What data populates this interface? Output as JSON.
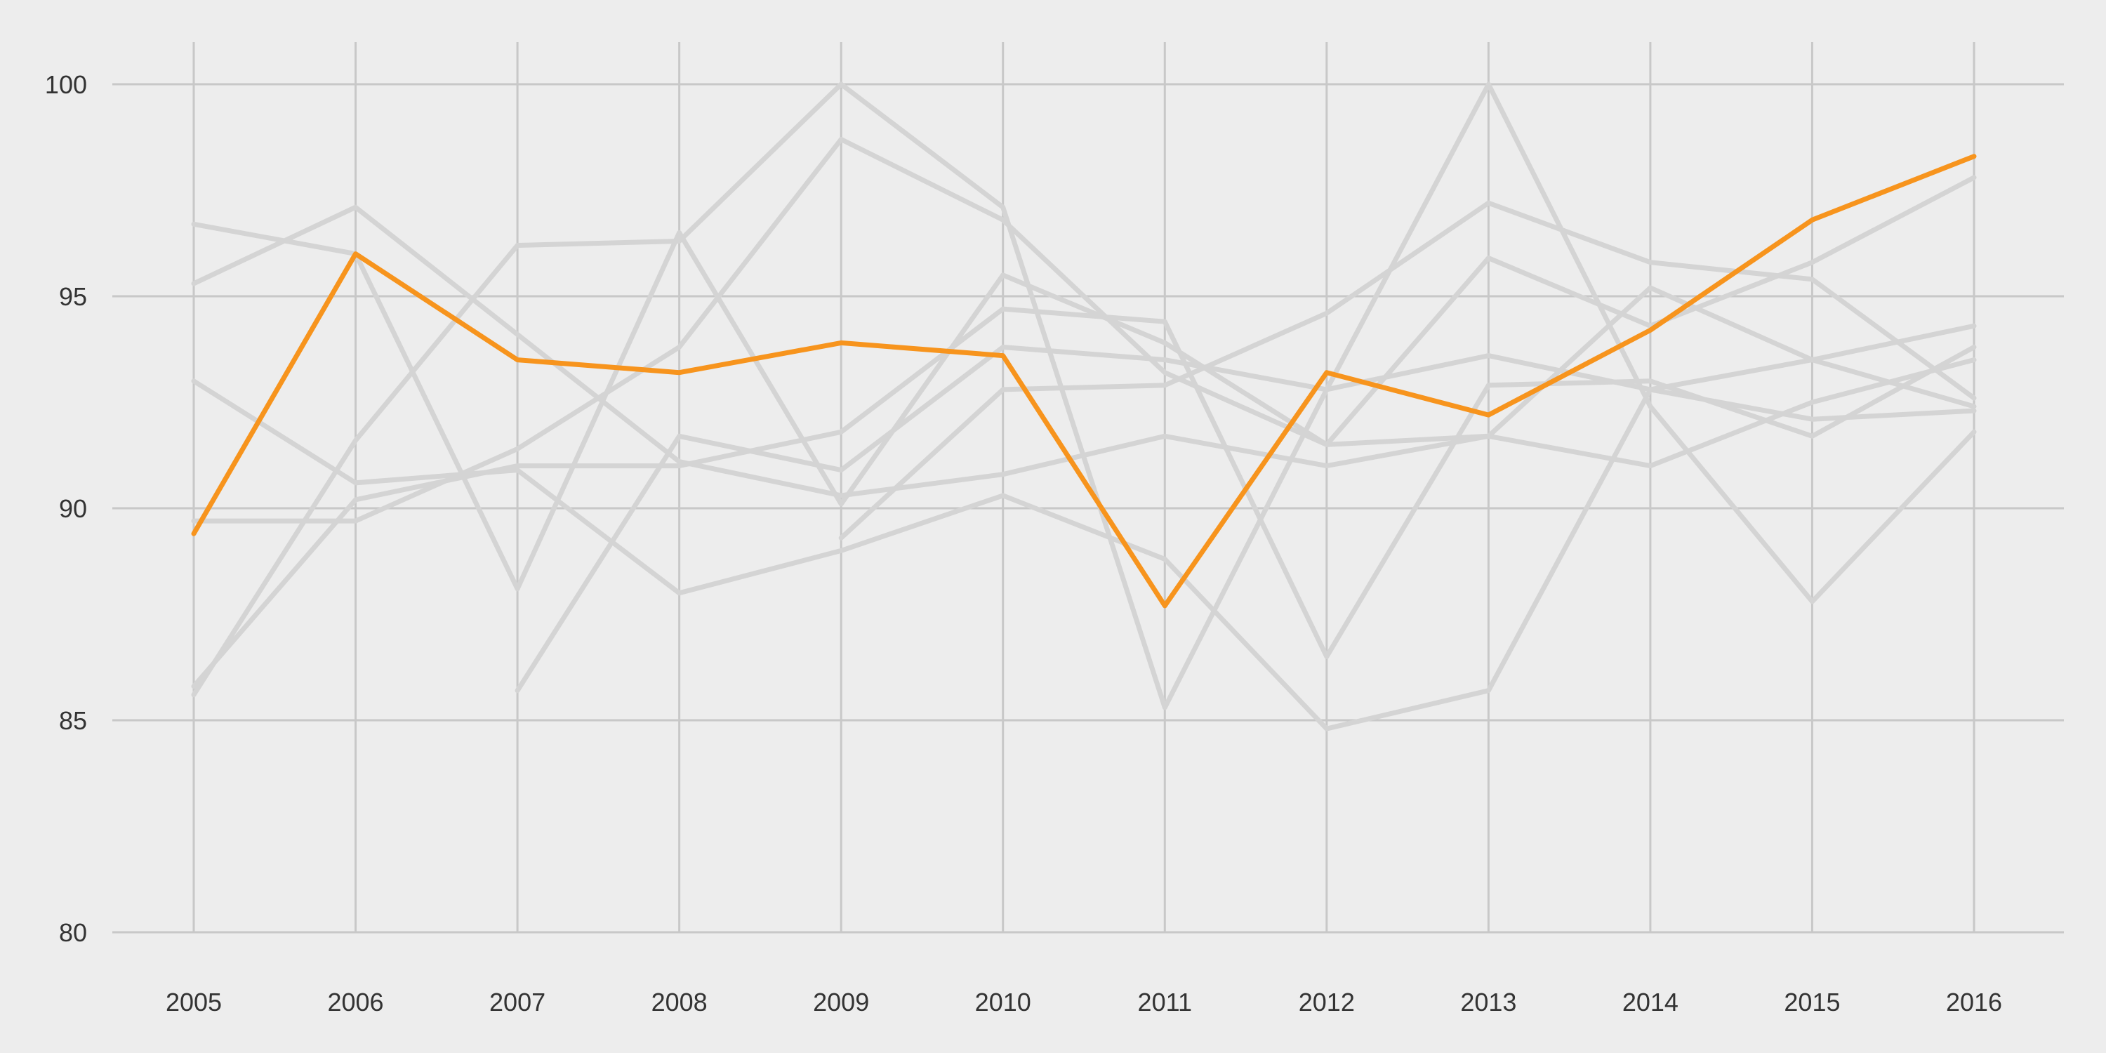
{
  "chart_data": {
    "type": "line",
    "title": "",
    "xlabel": "",
    "ylabel": "",
    "x": [
      "2005",
      "2006",
      "2007",
      "2008",
      "2009",
      "2010",
      "2011",
      "2012",
      "2013",
      "2014",
      "2015",
      "2016"
    ],
    "ylim": [
      80,
      100
    ],
    "yticks": [
      80,
      85,
      90,
      95,
      100
    ],
    "grid": true,
    "legend": "none",
    "colors": {
      "background": "#ededed",
      "grid": "#c8c8c8",
      "highlight": "#f7941d",
      "context": "#d4d4d4"
    },
    "highlight_series": {
      "values": [
        89.4,
        96.0,
        93.5,
        93.2,
        93.9,
        93.6,
        87.7,
        93.2,
        92.2,
        94.2,
        96.8,
        98.3
      ]
    },
    "series": [
      {
        "values": [
          96.7,
          96.0,
          88.1,
          96.5,
          90.1,
          95.5,
          93.9,
          91.5,
          95.9,
          94.3,
          95.8,
          97.8
        ]
      },
      {
        "values": [
          95.3,
          97.1,
          94.1,
          91.1,
          90.3,
          90.8,
          91.7,
          91.0,
          91.7,
          91.0,
          92.5,
          93.5
        ]
      },
      {
        "values": [
          93.0,
          90.6,
          90.9,
          88.0,
          89.0,
          90.3,
          88.8,
          84.8,
          85.7,
          92.8,
          92.1,
          92.3
        ]
      },
      {
        "values": [
          89.7,
          89.7,
          91.4,
          93.8,
          98.7,
          96.8,
          93.2,
          91.5,
          91.7,
          95.2,
          93.5,
          92.4
        ]
      },
      {
        "values": [
          85.6,
          91.6,
          96.2,
          96.3,
          100.0,
          97.1,
          85.3,
          92.8,
          100.0,
          92.4,
          87.8,
          91.8
        ]
      },
      {
        "values": [
          85.8,
          90.2,
          91.0,
          91.0,
          91.8,
          94.7,
          94.4,
          86.5,
          92.9,
          93.0,
          91.7,
          93.8
        ]
      },
      {
        "values": [
          null,
          null,
          85.7,
          91.7,
          90.9,
          93.8,
          93.5,
          92.8,
          93.6,
          92.8,
          93.5,
          94.3
        ]
      },
      {
        "values": [
          null,
          null,
          null,
          null,
          89.3,
          92.8,
          92.9,
          94.6,
          97.2,
          95.8,
          95.4,
          92.6
        ]
      }
    ]
  }
}
